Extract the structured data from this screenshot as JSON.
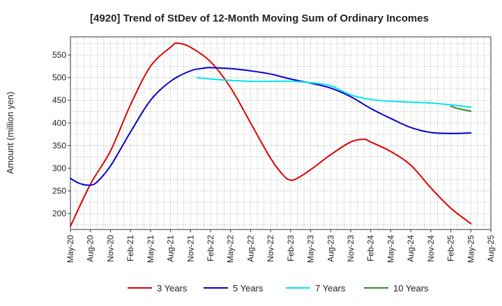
{
  "chart_data": {
    "type": "line",
    "title": "[4920]  Trend of StDev of 12-Month Moving Sum of Ordinary Incomes",
    "ylabel": "Amount (million yen)",
    "xlabel": "",
    "ylim": [
      165,
      590
    ],
    "yticks": [
      200,
      250,
      300,
      350,
      400,
      450,
      500,
      550
    ],
    "x_ticks": [
      "May-20",
      "Aug-20",
      "Nov-20",
      "Feb-21",
      "May-21",
      "Aug-21",
      "Nov-21",
      "Feb-22",
      "May-22",
      "Aug-22",
      "Nov-22",
      "Feb-23",
      "May-23",
      "Aug-23",
      "Nov-23",
      "Feb-24",
      "May-24",
      "Aug-24",
      "Nov-24",
      "Feb-25",
      "May-25",
      "Aug-25"
    ],
    "grid": true,
    "legend_position": "bottom",
    "series": [
      {
        "name": "3 Years",
        "color": "#dd0000",
        "x": [
          "May-20",
          "Aug-20",
          "Nov-20",
          "Feb-21",
          "May-21",
          "Aug-21",
          "Sep-21",
          "Nov-21",
          "Feb-22",
          "May-22",
          "Aug-22",
          "Nov-22",
          "Jan-23",
          "Feb-23",
          "Mar-23",
          "May-23",
          "Aug-23",
          "Nov-23",
          "Jan-24",
          "Feb-24",
          "May-24",
          "Aug-24",
          "Nov-24",
          "Feb-25",
          "May-25"
        ],
        "values": [
          172,
          265,
          338,
          440,
          525,
          567,
          576,
          567,
          535,
          478,
          400,
          322,
          283,
          274,
          278,
          297,
          330,
          358,
          364,
          358,
          337,
          307,
          257,
          212,
          178
        ]
      },
      {
        "name": "5 Years",
        "color": "#0000cc",
        "x": [
          "May-20",
          "Jun-20",
          "Jul-20",
          "Aug-20",
          "Sep-20",
          "Nov-20",
          "Feb-21",
          "May-21",
          "Aug-21",
          "Nov-21",
          "Jan-22",
          "Feb-22",
          "May-22",
          "Aug-22",
          "Nov-22",
          "Feb-23",
          "May-23",
          "Aug-23",
          "Nov-23",
          "Feb-24",
          "May-24",
          "Aug-24",
          "Nov-24",
          "Feb-25",
          "May-25"
        ],
        "values": [
          278,
          269,
          264,
          263,
          270,
          305,
          380,
          450,
          492,
          515,
          521,
          522,
          520,
          515,
          508,
          497,
          488,
          477,
          458,
          432,
          410,
          390,
          379,
          377,
          378
        ]
      },
      {
        "name": "7 Years",
        "color": "#00e5ee",
        "x": [
          "Dec-21",
          "Feb-22",
          "May-22",
          "Aug-22",
          "Nov-22",
          "Feb-23",
          "May-23",
          "Aug-23",
          "Nov-23",
          "Feb-24",
          "May-24",
          "Aug-24",
          "Nov-24",
          "Feb-25",
          "May-25"
        ],
        "values": [
          500,
          497,
          494,
          492,
          492,
          492,
          489,
          482,
          462,
          452,
          448,
          446,
          444,
          440,
          435
        ]
      },
      {
        "name": "10 Years",
        "color": "#2e8b2e",
        "x": [
          "Feb-25",
          "Mar-25",
          "May-25"
        ],
        "values": [
          437,
          432,
          426
        ]
      }
    ]
  }
}
